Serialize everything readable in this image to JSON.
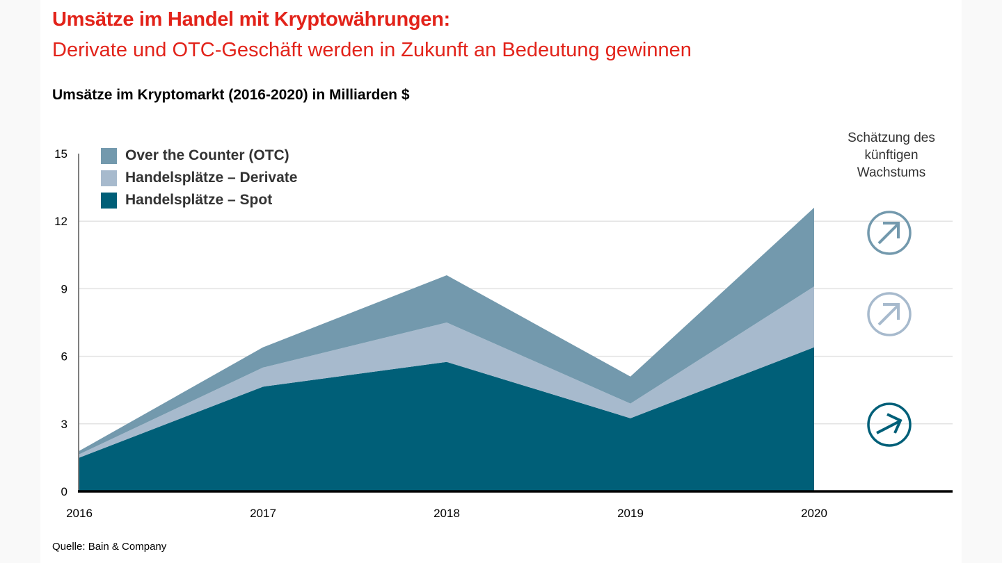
{
  "header": {
    "title": "Umsätze im Handel mit Kryptowährungen:",
    "subtitle": "Derivate und OTC-Geschäft werden in Zukunft an Bedeutung gewinnen"
  },
  "source": "Quelle: Bain & Company",
  "forecast": {
    "label": "Schätzung des künftigen Wachstums",
    "icons": [
      {
        "series": "Over the Counter (OTC)",
        "icon": "arrow-up-right-circle-icon",
        "direction": "steep"
      },
      {
        "series": "Handelsplätze – Derivate",
        "icon": "arrow-up-right-circle-icon",
        "direction": "steep"
      },
      {
        "series": "Handelsplätze – Spot",
        "icon": "arrow-up-right-circle-icon",
        "direction": "moderate"
      }
    ]
  },
  "chart_data": {
    "type": "area",
    "stacked": true,
    "title": "Umsätze im Kryptomarkt (2016-2020) in Milliarden $",
    "xlabel": "",
    "ylabel": "",
    "categories": [
      "2016",
      "2017",
      "2018",
      "2019",
      "2020"
    ],
    "ylim": [
      0,
      15
    ],
    "yticks": [
      0,
      3,
      6,
      9,
      12,
      15
    ],
    "grid": true,
    "legend_position": "top-left",
    "series": [
      {
        "name": "Handelsplätze – Spot",
        "color": "#005f78",
        "values": [
          1.5,
          4.65,
          5.75,
          3.25,
          6.4
        ]
      },
      {
        "name": "Handelsplätze – Derivate",
        "color": "#a7bacd",
        "values": [
          0.15,
          0.85,
          1.75,
          0.65,
          2.7
        ]
      },
      {
        "name": "Over the Counter (OTC)",
        "color": "#7399ad",
        "values": [
          0.15,
          0.9,
          2.1,
          1.2,
          3.5
        ]
      }
    ],
    "legend_order": [
      "Over the Counter (OTC)",
      "Handelsplätze – Derivate",
      "Handelsplätze – Spot"
    ]
  }
}
